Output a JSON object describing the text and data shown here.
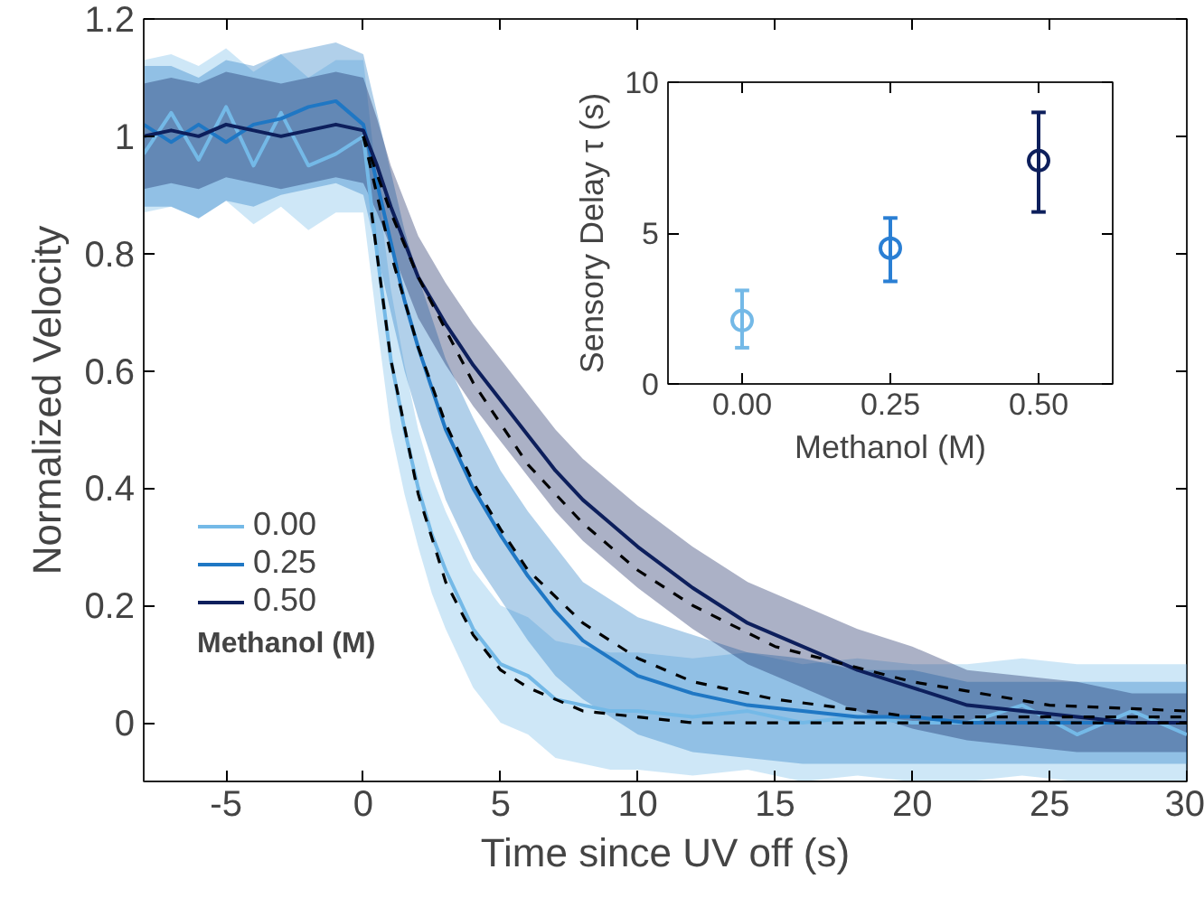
{
  "chart_data": [
    {
      "type": "line",
      "xlabel": "Time since UV off (s)",
      "ylabel": "Normalized Velocity",
      "legend_title": "Methanol (M)",
      "legend": "bottom left",
      "xlim": [
        -8,
        30
      ],
      "xticks": [
        -5,
        0,
        5,
        10,
        15,
        20,
        25,
        30
      ],
      "ylim": [
        -0.1,
        1.2
      ],
      "yticks": [
        0,
        0.2,
        0.4,
        0.6,
        0.8,
        1,
        1.2
      ],
      "x": [
        -8,
        -7,
        -6,
        -5,
        -4,
        -3,
        -2,
        -1,
        0,
        0.5,
        1,
        1.5,
        2,
        2.5,
        3,
        4,
        5,
        6,
        7,
        8,
        9,
        10,
        12,
        14,
        16,
        18,
        20,
        22,
        24,
        26,
        28,
        30
      ],
      "series": [
        {
          "name": "0.00",
          "color": "#74b9e7",
          "values": [
            0.97,
            1.04,
            0.96,
            1.05,
            0.95,
            1.04,
            0.95,
            0.97,
            1.0,
            0.8,
            0.62,
            0.5,
            0.4,
            0.32,
            0.26,
            0.16,
            0.1,
            0.08,
            0.04,
            0.03,
            0.02,
            0.02,
            0.01,
            0.02,
            0.0,
            0.01,
            0.0,
            0.0,
            0.03,
            -0.02,
            0.02,
            -0.02
          ],
          "lower": [
            0.87,
            0.88,
            0.86,
            0.89,
            0.85,
            0.88,
            0.84,
            0.87,
            0.87,
            0.68,
            0.5,
            0.39,
            0.3,
            0.22,
            0.16,
            0.06,
            0.0,
            -0.02,
            -0.06,
            -0.07,
            -0.08,
            -0.08,
            -0.09,
            -0.08,
            -0.1,
            -0.09,
            -0.1,
            -0.1,
            -0.09,
            -0.1,
            -0.1,
            -0.1
          ],
          "upper": [
            1.13,
            1.14,
            1.12,
            1.15,
            1.11,
            1.14,
            1.1,
            1.13,
            1.13,
            0.92,
            0.74,
            0.61,
            0.5,
            0.42,
            0.36,
            0.26,
            0.2,
            0.18,
            0.14,
            0.13,
            0.12,
            0.12,
            0.11,
            0.12,
            0.1,
            0.11,
            0.1,
            0.1,
            0.11,
            0.1,
            0.1,
            0.1
          ]
        },
        {
          "name": "0.25",
          "color": "#1f77c4",
          "values": [
            1.02,
            0.99,
            1.02,
            0.99,
            1.02,
            1.03,
            1.05,
            1.06,
            1.02,
            0.92,
            0.82,
            0.72,
            0.64,
            0.57,
            0.5,
            0.4,
            0.32,
            0.25,
            0.19,
            0.14,
            0.11,
            0.08,
            0.05,
            0.03,
            0.02,
            0.01,
            0.01,
            0.0,
            0.0,
            0.0,
            0.0,
            0.0
          ],
          "lower": [
            0.88,
            0.88,
            0.86,
            0.89,
            0.88,
            0.9,
            0.91,
            0.92,
            0.9,
            0.8,
            0.7,
            0.6,
            0.52,
            0.45,
            0.38,
            0.28,
            0.21,
            0.14,
            0.08,
            0.04,
            0.01,
            -0.02,
            -0.05,
            -0.06,
            -0.07,
            -0.07,
            -0.07,
            -0.07,
            -0.07,
            -0.07,
            -0.07,
            -0.07
          ],
          "upper": [
            1.12,
            1.12,
            1.1,
            1.13,
            1.12,
            1.14,
            1.15,
            1.16,
            1.14,
            1.04,
            0.94,
            0.84,
            0.76,
            0.69,
            0.62,
            0.52,
            0.43,
            0.36,
            0.3,
            0.24,
            0.21,
            0.18,
            0.15,
            0.12,
            0.11,
            0.09,
            0.09,
            0.07,
            0.07,
            0.07,
            0.07,
            0.07
          ]
        },
        {
          "name": "0.50",
          "color": "#0d1f5c",
          "values": [
            1.0,
            1.01,
            1.0,
            1.02,
            1.01,
            1.0,
            1.01,
            1.02,
            1.01,
            0.95,
            0.88,
            0.82,
            0.76,
            0.72,
            0.68,
            0.61,
            0.55,
            0.49,
            0.43,
            0.38,
            0.34,
            0.3,
            0.23,
            0.17,
            0.13,
            0.09,
            0.06,
            0.03,
            0.02,
            0.01,
            0.0,
            0.0
          ],
          "lower": [
            0.91,
            0.92,
            0.91,
            0.93,
            0.92,
            0.91,
            0.92,
            0.93,
            0.92,
            0.87,
            0.81,
            0.75,
            0.69,
            0.65,
            0.61,
            0.54,
            0.48,
            0.42,
            0.36,
            0.31,
            0.27,
            0.23,
            0.16,
            0.1,
            0.06,
            0.02,
            -0.01,
            -0.03,
            -0.04,
            -0.05,
            -0.05,
            -0.05
          ],
          "upper": [
            1.09,
            1.1,
            1.09,
            1.11,
            1.1,
            1.09,
            1.1,
            1.11,
            1.1,
            1.03,
            0.95,
            0.89,
            0.83,
            0.79,
            0.75,
            0.68,
            0.62,
            0.56,
            0.5,
            0.45,
            0.41,
            0.37,
            0.3,
            0.24,
            0.2,
            0.16,
            0.13,
            0.09,
            0.08,
            0.07,
            0.05,
            0.05
          ]
        },
        {
          "type": "line",
          "color": "#000000",
          "line_style": "dashed",
          "x": [
            0.3,
            1,
            2,
            3,
            4,
            5,
            6,
            8,
            10,
            12,
            15,
            20,
            25,
            30
          ],
          "values": [
            0.87,
            0.62,
            0.39,
            0.24,
            0.15,
            0.09,
            0.06,
            0.02,
            0.01,
            0.0,
            0.0,
            0.0,
            0.0,
            0.0
          ]
        },
        {
          "type": "line",
          "color": "#000000",
          "line_style": "dashed",
          "x": [
            0,
            1,
            2,
            3,
            4,
            5,
            6,
            8,
            10,
            12,
            15,
            20,
            25,
            30
          ],
          "values": [
            1,
            0.8,
            0.64,
            0.51,
            0.41,
            0.33,
            0.26,
            0.17,
            0.11,
            0.07,
            0.04,
            0.01,
            0.01,
            0.01
          ]
        },
        {
          "type": "line",
          "color": "#000000",
          "line_style": "dashed",
          "x": [
            0,
            1,
            2,
            3,
            4,
            5,
            6,
            8,
            10,
            12,
            15,
            20,
            25,
            30
          ],
          "values": [
            1,
            0.87,
            0.76,
            0.67,
            0.58,
            0.51,
            0.44,
            0.34,
            0.26,
            0.2,
            0.13,
            0.07,
            0.03,
            0.02
          ]
        }
      ]
    },
    {
      "type": "scatter",
      "xlabel": "Methanol (M)",
      "ylabel": "Sensory Delay τ (s)",
      "marker": "circle",
      "xlim": [
        -0.125,
        0.625
      ],
      "xticks": [
        {
          "value": 0,
          "label": "0.00"
        },
        {
          "value": 0.25,
          "label": "0.25"
        },
        {
          "value": 0.5,
          "label": "0.50"
        }
      ],
      "ylim": [
        0,
        10
      ],
      "yticks": [
        0,
        5,
        10
      ],
      "x": [
        0,
        0.25,
        0.5
      ],
      "values": [
        2.1,
        4.5,
        7.4
      ],
      "colors": [
        "#74b9e7",
        "#2a7fd4",
        "#0d1f5c"
      ],
      "errors": [
        [
          1.2,
          3.1
        ],
        [
          3.4,
          5.5
        ],
        [
          5.7,
          9.0
        ]
      ]
    }
  ]
}
